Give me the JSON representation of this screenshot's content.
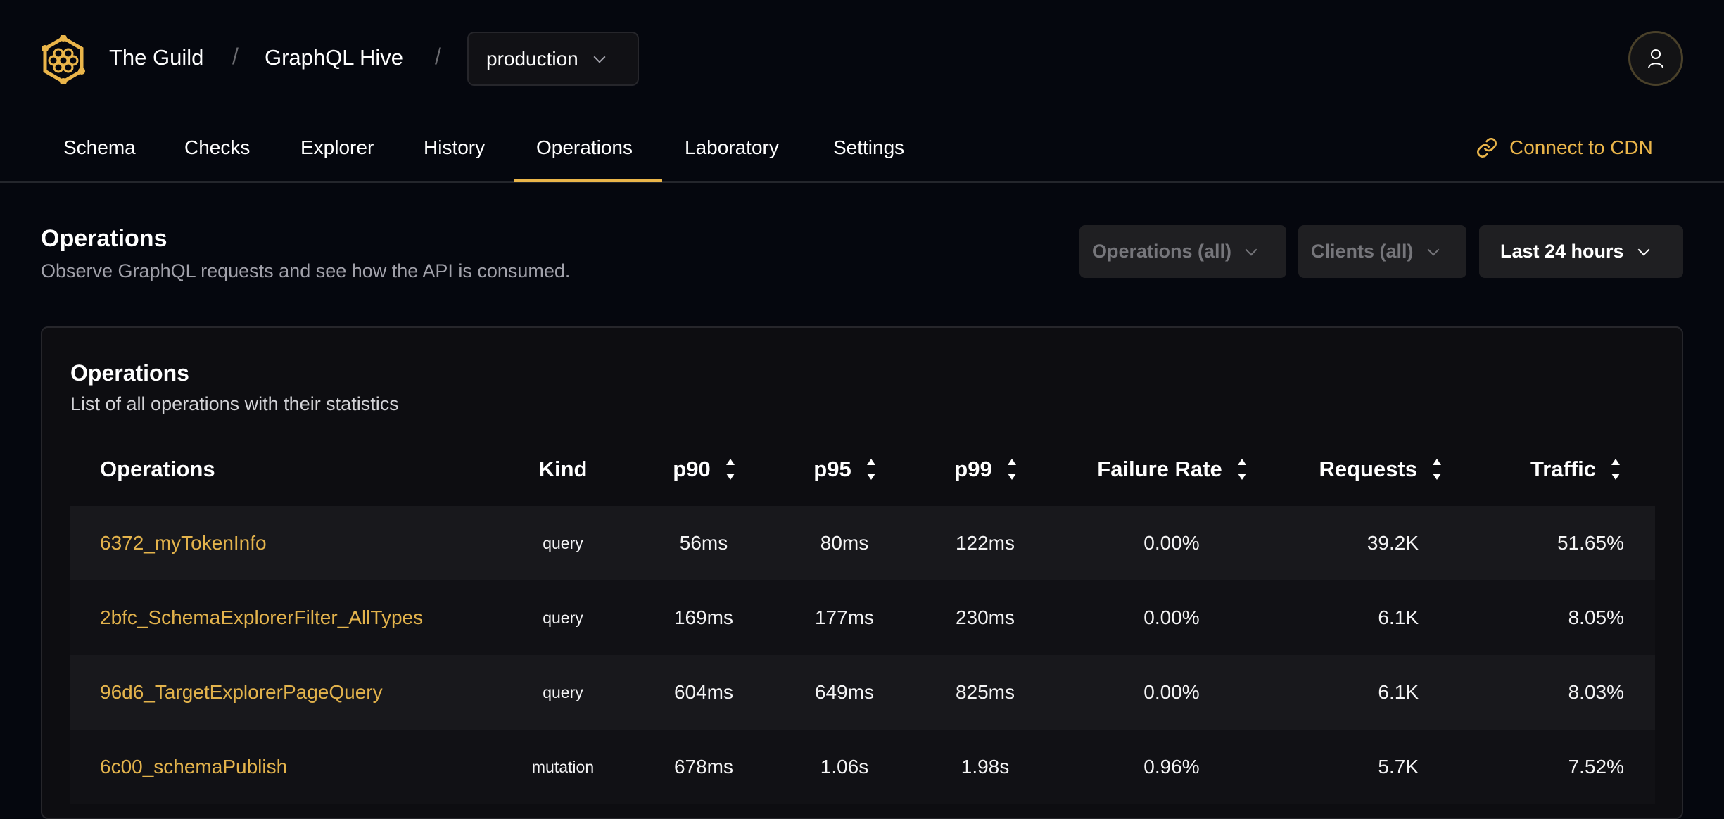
{
  "header": {
    "org": "The Guild",
    "project": "GraphQL Hive",
    "separator": "/",
    "environment": "production"
  },
  "nav": {
    "tabs": [
      {
        "label": "Schema"
      },
      {
        "label": "Checks"
      },
      {
        "label": "Explorer"
      },
      {
        "label": "History"
      },
      {
        "label": "Operations",
        "active": true
      },
      {
        "label": "Laboratory"
      },
      {
        "label": "Settings"
      }
    ],
    "cdn_label": "Connect to CDN"
  },
  "page": {
    "title": "Operations",
    "subtitle": "Observe GraphQL requests and see how the API is consumed.",
    "filters": {
      "operations": "Operations (all)",
      "clients": "Clients (all)",
      "period": "Last 24 hours"
    }
  },
  "card": {
    "title": "Operations",
    "subtitle": "List of all operations with their statistics",
    "columns": [
      "Operations",
      "Kind",
      "p90",
      "p95",
      "p99",
      "Failure Rate",
      "Requests",
      "Traffic"
    ],
    "rows": [
      {
        "name": "6372_myTokenInfo",
        "kind": "query",
        "p90": "56ms",
        "p95": "80ms",
        "p99": "122ms",
        "failure": "0.00%",
        "requests": "39.2K",
        "traffic": "51.65%"
      },
      {
        "name": "2bfc_SchemaExplorerFilter_AllTypes",
        "kind": "query",
        "p90": "169ms",
        "p95": "177ms",
        "p99": "230ms",
        "failure": "0.00%",
        "requests": "6.1K",
        "traffic": "8.05%"
      },
      {
        "name": "96d6_TargetExplorerPageQuery",
        "kind": "query",
        "p90": "604ms",
        "p95": "649ms",
        "p99": "825ms",
        "failure": "0.00%",
        "requests": "6.1K",
        "traffic": "8.03%"
      },
      {
        "name": "6c00_schemaPublish",
        "kind": "mutation",
        "p90": "678ms",
        "p95": "1.06s",
        "p99": "1.98s",
        "failure": "0.96%",
        "requests": "5.7K",
        "traffic": "7.52%"
      }
    ]
  },
  "colors": {
    "accent": "#eab54a",
    "background": "#05070e",
    "link": "#e3b34c"
  }
}
